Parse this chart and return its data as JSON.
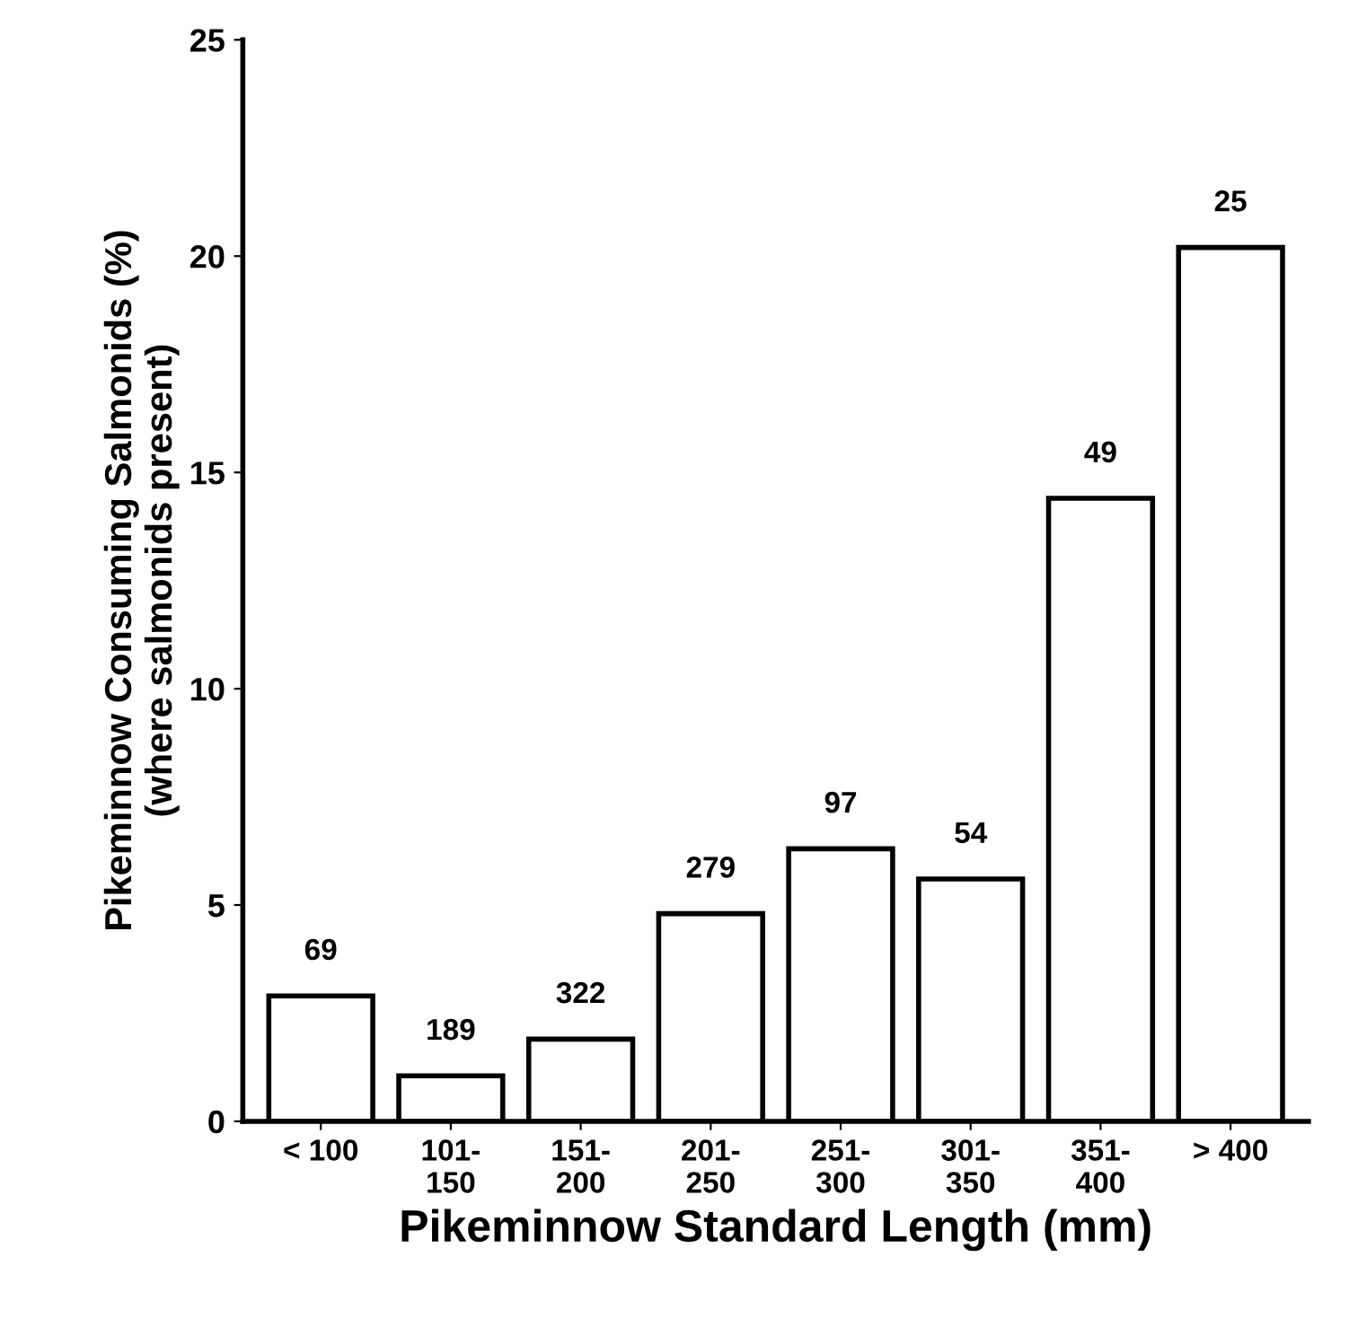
{
  "chart_data": {
    "type": "bar",
    "xlabel": "Pikeminnow Standard Length (mm)",
    "ylabel": "Pikeminnow Consuming Salmonids (%)\n(where salmonids present)",
    "categories": [
      "< 100",
      "101-\n150",
      "151-\n200",
      "201-\n250",
      "251-\n300",
      "301-\n350",
      "351-\n400",
      "> 400"
    ],
    "values": [
      2.9,
      1.05,
      1.9,
      4.8,
      6.3,
      5.6,
      14.4,
      20.2
    ],
    "annotations": [
      {
        "text": "69",
        "x": "< 100",
        "y": 2.9
      },
      {
        "text": "189",
        "x": "101-\n150",
        "y": 1.05
      },
      {
        "text": "322",
        "x": "151-\n200",
        "y": 1.9
      },
      {
        "text": "279",
        "x": "201-\n250",
        "y": 4.8
      },
      {
        "text": "97",
        "x": "251-\n300",
        "y": 6.3
      },
      {
        "text": "54",
        "x": "301-\n350",
        "y": 5.6
      },
      {
        "text": "49",
        "x": "351-\n400",
        "y": 14.4
      },
      {
        "text": "25",
        "x": "> 400",
        "y": 20.2
      }
    ],
    "color": "#ffffff",
    "ylim": [
      0,
      25
    ],
    "yticks": [
      0,
      5,
      10,
      15,
      20,
      25
    ],
    "grid": false
  }
}
